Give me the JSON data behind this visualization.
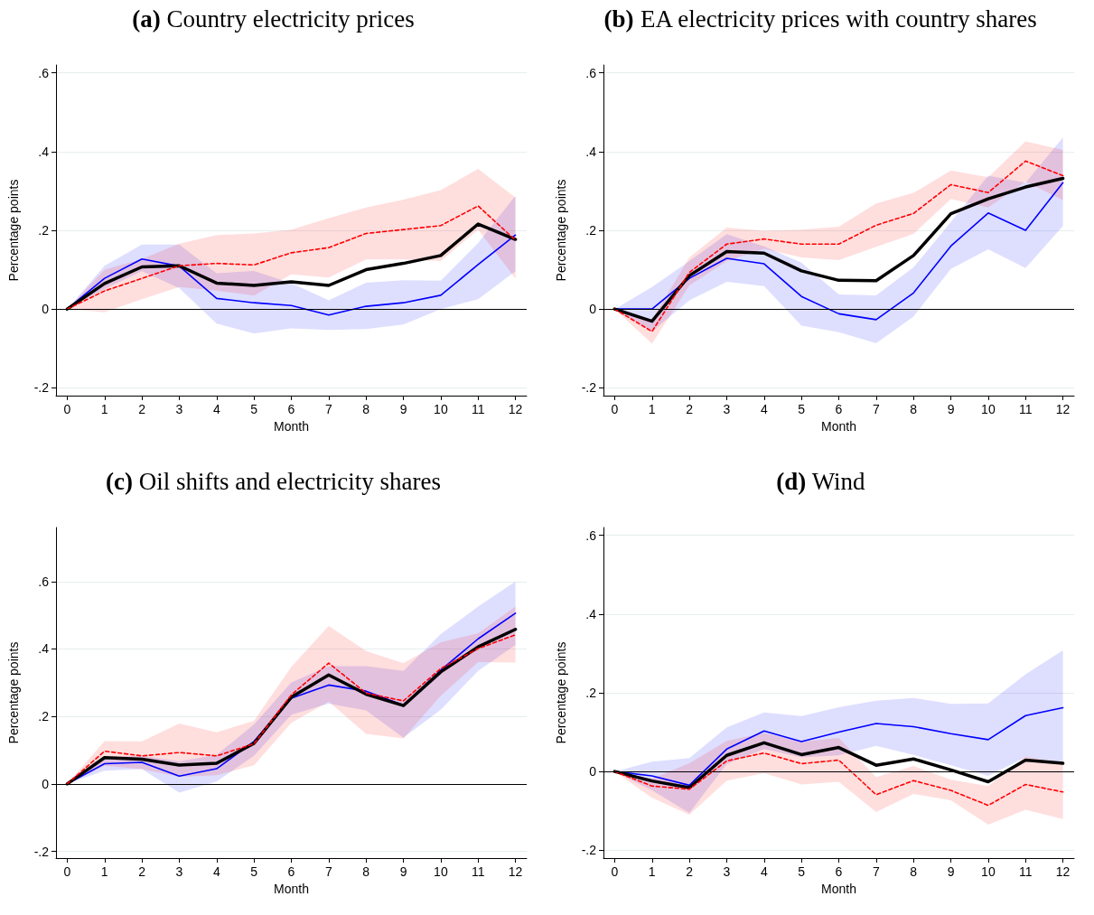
{
  "chart_data": [
    {
      "type": "line",
      "title": "(a) Country electricity prices",
      "xlabel": "Month",
      "ylabel": "Percentage points",
      "x": [
        0,
        1,
        2,
        3,
        4,
        5,
        6,
        7,
        8,
        9,
        10,
        11,
        12
      ],
      "xlim": [
        -0.3,
        12.3
      ],
      "xticks": [
        0,
        1,
        2,
        3,
        4,
        5,
        6,
        7,
        8,
        9,
        10,
        11,
        12
      ],
      "ylim": [
        -0.22,
        0.62
      ],
      "yticks": [
        {
          "value": -0.2,
          "label": "-.2"
        },
        {
          "value": 0,
          "label": "0"
        },
        {
          "value": 0.2,
          "label": ".2"
        },
        {
          "value": 0.4,
          "label": ".4"
        },
        {
          "value": 0.6,
          "label": ".6"
        }
      ],
      "grid": "y",
      "marker": "none",
      "ref_lines": [
        {
          "axis": "y",
          "value": 0,
          "color": "#000000"
        }
      ],
      "series": [
        {
          "color": "#0000ff",
          "line_style": "solid",
          "values": [
            0,
            0.078,
            0.127,
            0.109,
            0.027,
            0.016,
            0.009,
            -0.015,
            0.007,
            0.016,
            0.035,
            0.113,
            0.188
          ],
          "lower": [
            0,
            0.051,
            0.096,
            0.053,
            -0.037,
            -0.062,
            -0.049,
            -0.053,
            -0.051,
            -0.039,
            0,
            0.025,
            0.096
          ],
          "upper": [
            0,
            0.11,
            0.164,
            0.164,
            0.091,
            0.097,
            0.066,
            0.022,
            0.067,
            0.073,
            0.072,
            0.168,
            0.288
          ]
        },
        {
          "color": "#ff0000",
          "line_style": "dashed",
          "values": [
            0,
            0.046,
            0.078,
            0.11,
            0.116,
            0.112,
            0.143,
            0.156,
            0.192,
            0.202,
            0.212,
            0.262,
            0.175
          ],
          "lower": [
            0,
            -0.008,
            0.025,
            0.056,
            0.047,
            0.034,
            0.088,
            0.08,
            0.126,
            0.126,
            0.122,
            0.202,
            0.078
          ],
          "upper": [
            0,
            0.1,
            0.127,
            0.166,
            0.188,
            0.192,
            0.202,
            0.231,
            0.258,
            0.278,
            0.302,
            0.356,
            0.283
          ]
        },
        {
          "color": "#000000",
          "line_style": "solid",
          "values": [
            0,
            0.065,
            0.107,
            0.11,
            0.066,
            0.06,
            0.069,
            0.06,
            0.1,
            0.116,
            0.136,
            0.216,
            0.177
          ]
        }
      ]
    },
    {
      "type": "line",
      "title": "(b) EA electricity prices with country shares",
      "xlabel": "Month",
      "ylabel": "Percentage points",
      "x": [
        0,
        1,
        2,
        3,
        4,
        5,
        6,
        7,
        8,
        9,
        10,
        11,
        12
      ],
      "xlim": [
        -0.3,
        12.3
      ],
      "xticks": [
        0,
        1,
        2,
        3,
        4,
        5,
        6,
        7,
        8,
        9,
        10,
        11,
        12
      ],
      "ylim": [
        -0.22,
        0.62
      ],
      "yticks": [
        {
          "value": -0.2,
          "label": "-.2"
        },
        {
          "value": 0,
          "label": "0"
        },
        {
          "value": 0.2,
          "label": ".2"
        },
        {
          "value": 0.4,
          "label": ".4"
        },
        {
          "value": 0.6,
          "label": ".6"
        }
      ],
      "grid": "y",
      "marker": "none",
      "ref_lines": [
        {
          "axis": "y",
          "value": 0,
          "color": "#000000"
        }
      ],
      "series": [
        {
          "color": "#0000ff",
          "line_style": "solid",
          "values": [
            0,
            0,
            0.078,
            0.129,
            0.115,
            0.032,
            -0.012,
            -0.027,
            0.041,
            0.16,
            0.244,
            0.2,
            0.321
          ],
          "lower": [
            0,
            -0.057,
            0.022,
            0.069,
            0.058,
            -0.042,
            -0.059,
            -0.087,
            -0.019,
            0.102,
            0.152,
            0.104,
            0.211
          ],
          "upper": [
            0,
            0.056,
            0.122,
            0.19,
            0.159,
            0.118,
            0.037,
            0.035,
            0.106,
            0.221,
            0.339,
            0.321,
            0.436
          ]
        },
        {
          "color": "#ff0000",
          "line_style": "dashed",
          "values": [
            0,
            -0.057,
            0.093,
            0.165,
            0.178,
            0.165,
            0.165,
            0.213,
            0.243,
            0.316,
            0.296,
            0.376,
            0.339
          ],
          "lower": [
            0,
            -0.088,
            0.06,
            0.122,
            0.153,
            0.131,
            0.124,
            0.158,
            0.191,
            0.28,
            0.258,
            0.324,
            0.277
          ],
          "upper": [
            0,
            -0.028,
            0.131,
            0.207,
            0.199,
            0.202,
            0.209,
            0.268,
            0.295,
            0.352,
            0.335,
            0.426,
            0.404
          ]
        },
        {
          "color": "#000000",
          "line_style": "solid",
          "values": [
            0,
            -0.031,
            0.085,
            0.146,
            0.142,
            0.097,
            0.073,
            0.072,
            0.136,
            0.242,
            0.28,
            0.31,
            0.332
          ]
        }
      ]
    },
    {
      "type": "line",
      "title": "(c) Oil shifts and electricity shares",
      "xlabel": "Month",
      "ylabel": "Percentage points",
      "x": [
        0,
        1,
        2,
        3,
        4,
        5,
        6,
        7,
        8,
        9,
        10,
        11,
        12
      ],
      "xlim": [
        -0.3,
        12.3
      ],
      "xticks": [
        0,
        1,
        2,
        3,
        4,
        5,
        6,
        7,
        8,
        9,
        10,
        11,
        12
      ],
      "ylim": [
        -0.22,
        0.76
      ],
      "yticks": [
        {
          "value": -0.2,
          "label": "-.2"
        },
        {
          "value": 0,
          "label": "0"
        },
        {
          "value": 0.2,
          "label": ".2"
        },
        {
          "value": 0.4,
          "label": ".4"
        },
        {
          "value": 0.6,
          "label": ".6"
        }
      ],
      "grid": "y",
      "marker": "none",
      "ref_lines": [
        {
          "axis": "y",
          "value": 0,
          "color": "#000000"
        }
      ],
      "series": [
        {
          "color": "#0000ff",
          "line_style": "solid",
          "values": [
            0,
            0.06,
            0.064,
            0.023,
            0.045,
            0.126,
            0.254,
            0.293,
            0.275,
            0.233,
            0.337,
            0.43,
            0.506
          ],
          "lower": [
            0,
            0.039,
            0.044,
            -0.026,
            0.007,
            0.083,
            0.205,
            0.238,
            0.218,
            0.137,
            0.22,
            0.335,
            0.412
          ],
          "upper": [
            0,
            0.08,
            0.083,
            0.067,
            0.086,
            0.176,
            0.301,
            0.349,
            0.349,
            0.335,
            0.444,
            0.526,
            0.6
          ]
        },
        {
          "color": "#ff0000",
          "line_style": "dashed",
          "values": [
            0,
            0.097,
            0.083,
            0.093,
            0.083,
            0.119,
            0.264,
            0.358,
            0.269,
            0.246,
            0.342,
            0.401,
            0.442
          ],
          "lower": [
            0,
            0.054,
            0.044,
            0.021,
            0.026,
            0.055,
            0.181,
            0.244,
            0.148,
            0.135,
            0.261,
            0.361,
            0.36
          ],
          "upper": [
            0,
            0.127,
            0.126,
            0.179,
            0.153,
            0.187,
            0.347,
            0.468,
            0.394,
            0.358,
            0.42,
            0.446,
            0.526
          ]
        },
        {
          "color": "#000000",
          "line_style": "solid",
          "values": [
            0,
            0.078,
            0.073,
            0.056,
            0.061,
            0.12,
            0.257,
            0.323,
            0.266,
            0.232,
            0.332,
            0.406,
            0.458
          ]
        }
      ]
    },
    {
      "type": "line",
      "title": "(d) Wind",
      "xlabel": "Month",
      "ylabel": "Percentage points",
      "x": [
        0,
        1,
        2,
        3,
        4,
        5,
        6,
        7,
        8,
        9,
        10,
        11,
        12
      ],
      "xlim": [
        -0.3,
        12.3
      ],
      "xticks": [
        0,
        1,
        2,
        3,
        4,
        5,
        6,
        7,
        8,
        9,
        10,
        11,
        12
      ],
      "ylim": [
        -0.22,
        0.62
      ],
      "yticks": [
        {
          "value": -0.2,
          "label": "-.2"
        },
        {
          "value": 0,
          "label": "0"
        },
        {
          "value": 0.2,
          "label": ".2"
        },
        {
          "value": 0.4,
          "label": ".4"
        },
        {
          "value": 0.6,
          "label": ".6"
        }
      ],
      "grid": "y",
      "marker": "none",
      "ref_lines": [
        {
          "axis": "y",
          "value": 0,
          "color": "#000000"
        }
      ],
      "series": [
        {
          "color": "#0000ff",
          "line_style": "solid",
          "values": [
            0,
            -0.011,
            -0.035,
            0.057,
            0.103,
            0.076,
            0.1,
            0.122,
            0.114,
            0.096,
            0.081,
            0.142,
            0.162
          ],
          "lower": [
            0,
            -0.048,
            -0.105,
            0.019,
            0.057,
            0.036,
            0.041,
            0.065,
            0.042,
            0.016,
            -0.011,
            0.036,
            0.023
          ],
          "upper": [
            0,
            0.025,
            0.034,
            0.112,
            0.15,
            0.141,
            0.163,
            0.18,
            0.187,
            0.172,
            0.173,
            0.247,
            0.308
          ]
        },
        {
          "color": "#ff0000",
          "line_style": "dashed",
          "values": [
            0,
            -0.037,
            -0.045,
            0.027,
            0.047,
            0.02,
            0.029,
            -0.059,
            -0.023,
            -0.048,
            -0.086,
            -0.033,
            -0.052
          ],
          "lower": [
            0,
            -0.067,
            -0.11,
            -0.023,
            -0.004,
            -0.033,
            -0.026,
            -0.103,
            -0.057,
            -0.073,
            -0.135,
            -0.097,
            -0.121
          ],
          "upper": [
            0,
            -0.018,
            0.021,
            0.078,
            0.098,
            0.076,
            0.085,
            -0.014,
            0.014,
            -0.021,
            -0.037,
            0.038,
            0.021
          ]
        },
        {
          "color": "#000000",
          "line_style": "solid",
          "values": [
            0,
            -0.024,
            -0.041,
            0.041,
            0.073,
            0.043,
            0.061,
            0.016,
            0.032,
            0.004,
            -0.026,
            0.029,
            0.021
          ]
        }
      ]
    }
  ]
}
